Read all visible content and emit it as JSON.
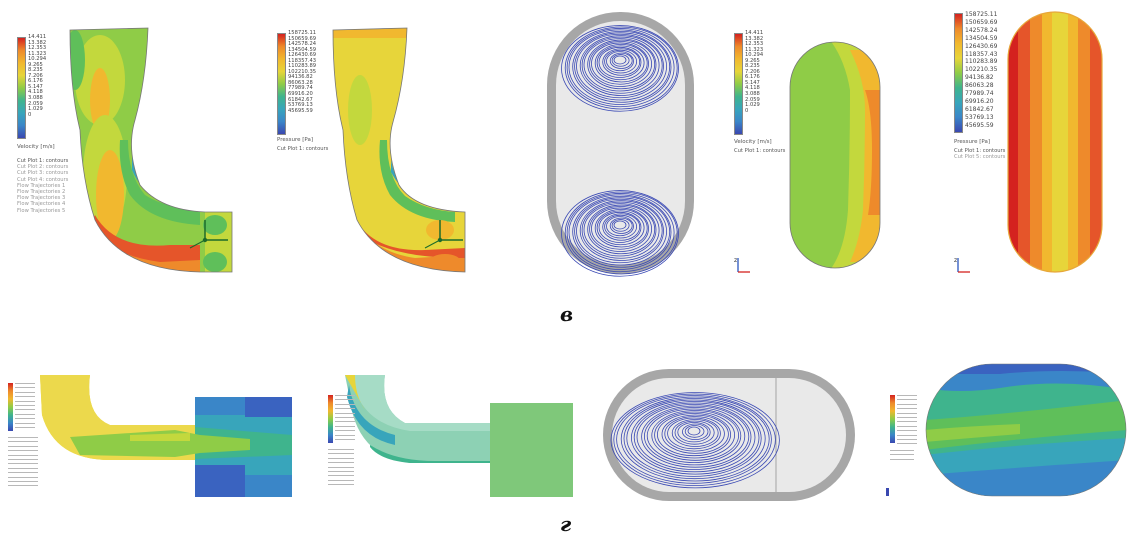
{
  "captions": {
    "row1": "в",
    "row2": "г"
  },
  "velocity_legend": {
    "ticks": [
      "14.411",
      "13.382",
      "12.353",
      "11.323",
      "10.294",
      "9.265",
      "8.235",
      "7.206",
      "6.176",
      "5.147",
      "4.118",
      "3.088",
      "2.059",
      "1.029",
      "0"
    ],
    "unit": "Velocity [m/s]",
    "items_full": [
      "Cut Plot 1: contours",
      "Cut Plot 2: contours",
      "Cut Plot 3: contours",
      "Cut Plot 4: contours",
      "Flow Trajectories 1",
      "Flow Trajectories 2",
      "Flow Trajectories 3",
      "Flow Trajectories 4",
      "Flow Trajectories 5"
    ],
    "items_short": [
      "Cut Plot 1: contours"
    ]
  },
  "pressure_legend": {
    "ticks": [
      "158725.11",
      "150659.69",
      "142578.24",
      "134504.59",
      "126430.69",
      "118357.43",
      "110283.89",
      "102210.35",
      "94136.82",
      "86063.28",
      "77989.74",
      "69916.20",
      "61842.67",
      "53769.13",
      "45695.59"
    ],
    "unit": "Pressure [Pa]",
    "items_a": [
      "Cut Plot 1: contours"
    ],
    "items_b": [
      "Cut Plot 1: contours",
      "Cut Plot 5: contours"
    ]
  },
  "palette": {
    "scale": [
      "#d4221f",
      "#e5552a",
      "#ee8a2b",
      "#f1b82f",
      "#e7d53a",
      "#c3d83d",
      "#8fcc47",
      "#5fbf5a",
      "#3fb48d",
      "#38a5bb",
      "#3a86c8",
      "#3b63c0",
      "#3a48b0",
      "#343a9e"
    ],
    "streamline": "#3a49b4",
    "casing": "#a7a7a7"
  },
  "axis_triad": {
    "x": "x",
    "y": "y",
    "z": "z"
  }
}
